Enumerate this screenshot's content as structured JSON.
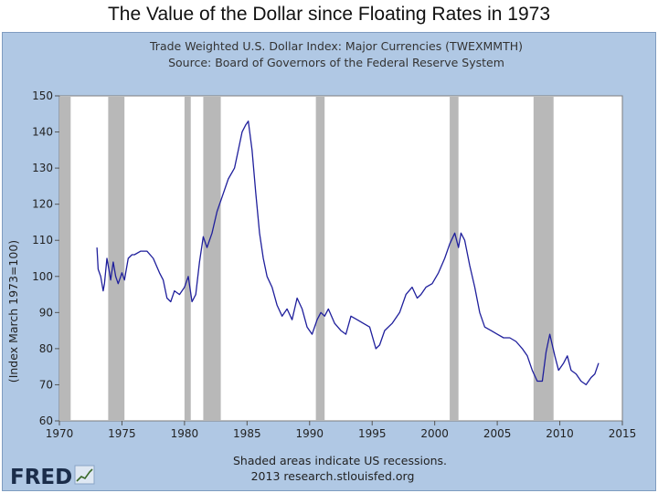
{
  "slide_title": "The Value of the Dollar since Floating Rates in 1973",
  "logo_text": "FRED",
  "colors": {
    "frame": "#b0c8e4",
    "plot_bg": "#ffffff",
    "line": "#1f1f9c",
    "recession": "#b8b8b8"
  },
  "chart_data": {
    "type": "line",
    "title": "Trade Weighted U.S. Dollar Index: Major Currencies (TWEXMMTH)",
    "subtitle": "Source: Board of Governors of the Federal Reserve System",
    "ylabel": "(Index March 1973=100)",
    "xlabel": "",
    "xlim": [
      1970,
      2015
    ],
    "ylim": [
      60,
      150
    ],
    "x_ticks": [
      "1970",
      "1975",
      "1980",
      "1985",
      "1990",
      "1995",
      "2000",
      "2005",
      "2010",
      "2015"
    ],
    "y_ticks": [
      "60",
      "70",
      "80",
      "90",
      "100",
      "110",
      "120",
      "130",
      "140",
      "150"
    ],
    "grid": false,
    "footer": [
      "Shaded areas indicate US recessions.",
      "2013 research.stlouisfed.org"
    ],
    "recessions": [
      [
        1969.9,
        1970.9
      ],
      [
        1973.9,
        1975.2
      ],
      [
        1980.0,
        1980.5
      ],
      [
        1981.5,
        1982.9
      ],
      [
        1990.5,
        1991.2
      ],
      [
        2001.2,
        2001.9
      ],
      [
        2007.9,
        2009.5
      ]
    ],
    "series": [
      {
        "x": [
          1973.0,
          1973.1,
          1973.3,
          1973.5,
          1973.6,
          1973.8,
          1974.0,
          1974.1,
          1974.3,
          1974.5,
          1974.7,
          1974.9,
          1975.0,
          1975.2,
          1975.5,
          1975.8,
          1976.0,
          1976.5,
          1977.0,
          1977.5,
          1978.0,
          1978.3,
          1978.6,
          1978.9,
          1979.2,
          1979.6,
          1980.0,
          1980.3,
          1980.6,
          1980.9,
          1981.2,
          1981.5,
          1981.8,
          1982.2,
          1982.6,
          1983.0,
          1983.5,
          1984.0,
          1984.3,
          1984.6,
          1984.9,
          1985.1,
          1985.4,
          1985.7,
          1986.0,
          1986.3,
          1986.6,
          1987.0,
          1987.4,
          1987.8,
          1988.2,
          1988.6,
          1989.0,
          1989.4,
          1989.8,
          1990.2,
          1990.6,
          1990.9,
          1991.2,
          1991.5,
          1992.0,
          1992.5,
          1992.9,
          1993.3,
          1993.8,
          1994.3,
          1994.8,
          1995.3,
          1995.6,
          1996.0,
          1996.6,
          1997.2,
          1997.7,
          1998.2,
          1998.6,
          1998.9,
          1999.3,
          1999.8,
          2000.3,
          2000.8,
          2001.2,
          2001.6,
          2001.9,
          2002.1,
          2002.4,
          2002.8,
          2003.2,
          2003.6,
          2004.0,
          2004.5,
          2005.0,
          2005.5,
          2006.0,
          2006.5,
          2007.0,
          2007.4,
          2007.8,
          2008.2,
          2008.6,
          2008.9,
          2009.2,
          2009.6,
          2009.9,
          2010.3,
          2010.6,
          2010.9,
          2011.3,
          2011.7,
          2012.1,
          2012.5,
          2012.8,
          2013.1
        ],
        "values": [
          108,
          102,
          100,
          96,
          98,
          105,
          101,
          99,
          104,
          100,
          98,
          100,
          101,
          99,
          105,
          106,
          106,
          107,
          107,
          105,
          101,
          99,
          94,
          93,
          96,
          95,
          97,
          100,
          93,
          95,
          104,
          111,
          108,
          112,
          118,
          122,
          127,
          130,
          135,
          140,
          142,
          143,
          135,
          123,
          112,
          105,
          100,
          97,
          92,
          89,
          91,
          88,
          94,
          91,
          86,
          84,
          88,
          90,
          89,
          91,
          87,
          85,
          84,
          89,
          88,
          87,
          86,
          80,
          81,
          85,
          87,
          90,
          95,
          97,
          94,
          95,
          97,
          98,
          101,
          105,
          109,
          112,
          108,
          112,
          110,
          103,
          97,
          90,
          86,
          85,
          84,
          83,
          83,
          82,
          80,
          78,
          74,
          71,
          71,
          79,
          84,
          78,
          74,
          76,
          78,
          74,
          73,
          71,
          70,
          72,
          73,
          76
        ]
      }
    ]
  }
}
